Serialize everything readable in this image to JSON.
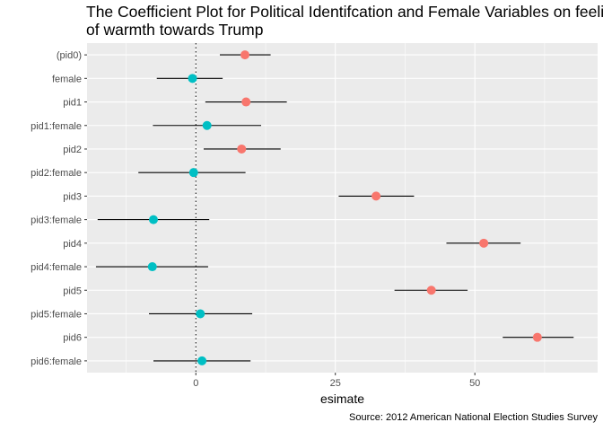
{
  "title_lines": [
    "The Coefficient Plot for Political Identifcation and Female Variables on feeling",
    "of warmth towards Trump"
  ],
  "caption": "Source: 2012 American National Election Studies Survey",
  "chart_data": {
    "type": "scatter",
    "title": "The Coefficient Plot for Political Identifcation and Female Variables on feeling of warmth towards Trump",
    "xlabel": "esimate",
    "ylabel": "",
    "xlim": [
      -19.5,
      72
    ],
    "xticks": [
      0,
      25,
      50
    ],
    "grid": true,
    "reference_line": {
      "x": 0,
      "style": "dotted"
    },
    "legend": "none",
    "colors": {
      "pid": "#F8766D",
      "female": "#00BFC4",
      "panel": "#EBEBEB",
      "grid": "#FFFFFF",
      "errorbar": "#000000"
    },
    "categories": [
      "(pid0)",
      "female",
      "pid1",
      "pid1:female",
      "pid2",
      "pid2:female",
      "pid3",
      "pid3:female",
      "pid4",
      "pid4:female",
      "pid5",
      "pid5:female",
      "pid6",
      "pid6:female"
    ],
    "points": [
      {
        "term": "(pid0)",
        "estimate": 8.8,
        "low": 4.3,
        "high": 13.4,
        "group": "pid"
      },
      {
        "term": "female",
        "estimate": -0.6,
        "low": -7.0,
        "high": 4.8,
        "group": "female"
      },
      {
        "term": "pid1",
        "estimate": 9.0,
        "low": 1.7,
        "high": 16.3,
        "group": "pid"
      },
      {
        "term": "pid1:female",
        "estimate": 2.0,
        "low": -7.7,
        "high": 11.7,
        "group": "female"
      },
      {
        "term": "pid2",
        "estimate": 8.2,
        "low": 1.4,
        "high": 15.2,
        "group": "pid"
      },
      {
        "term": "pid2:female",
        "estimate": -0.4,
        "low": -10.3,
        "high": 8.9,
        "group": "female"
      },
      {
        "term": "pid3",
        "estimate": 32.3,
        "low": 25.6,
        "high": 39.1,
        "group": "pid"
      },
      {
        "term": "pid3:female",
        "estimate": -7.6,
        "low": -17.6,
        "high": 2.4,
        "group": "female"
      },
      {
        "term": "pid4",
        "estimate": 51.6,
        "low": 44.9,
        "high": 58.2,
        "group": "pid"
      },
      {
        "term": "pid4:female",
        "estimate": -7.8,
        "low": -17.9,
        "high": 2.2,
        "group": "female"
      },
      {
        "term": "pid5",
        "estimate": 42.2,
        "low": 35.6,
        "high": 48.7,
        "group": "pid"
      },
      {
        "term": "pid5:female",
        "estimate": 0.8,
        "low": -8.4,
        "high": 10.1,
        "group": "female"
      },
      {
        "term": "pid6",
        "estimate": 61.2,
        "low": 55.0,
        "high": 67.7,
        "group": "pid"
      },
      {
        "term": "pid6:female",
        "estimate": 1.1,
        "low": -7.6,
        "high": 9.8,
        "group": "female"
      }
    ]
  }
}
